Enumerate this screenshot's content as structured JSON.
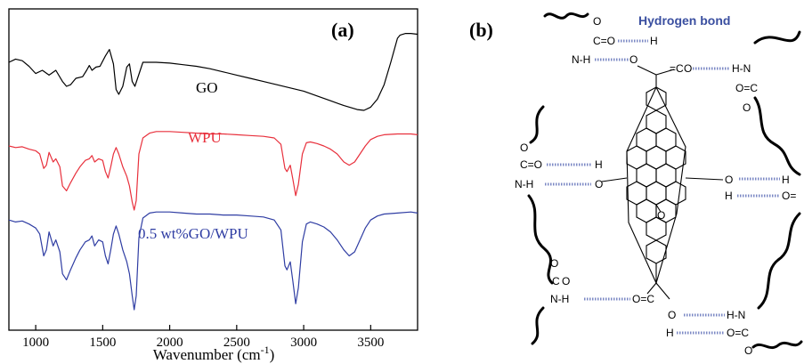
{
  "chart_data": [
    {
      "panel_label": "(a)",
      "type": "line",
      "xlabel": "Wavenumber (cm",
      "xlabel_sup": "-1",
      "xlabel_close": ")",
      "xlim": [
        800,
        3850
      ],
      "xticks": [
        1000,
        1500,
        2000,
        2500,
        3000,
        3500
      ],
      "grid": false,
      "yticks": "none",
      "series": [
        {
          "name": "GO",
          "color": "#000000",
          "points": [
            [
              800,
              0.4
            ],
            [
              850,
              0.36
            ],
            [
              900,
              0.38
            ],
            [
              950,
              0.45
            ],
            [
              1000,
              0.54
            ],
            [
              1050,
              0.5
            ],
            [
              1100,
              0.56
            ],
            [
              1150,
              0.5
            ],
            [
              1200,
              0.64
            ],
            [
              1230,
              0.7
            ],
            [
              1260,
              0.68
            ],
            [
              1300,
              0.6
            ],
            [
              1350,
              0.58
            ],
            [
              1380,
              0.5
            ],
            [
              1400,
              0.44
            ],
            [
              1420,
              0.5
            ],
            [
              1450,
              0.46
            ],
            [
              1480,
              0.45
            ],
            [
              1520,
              0.32
            ],
            [
              1550,
              0.24
            ],
            [
              1580,
              0.42
            ],
            [
              1600,
              0.74
            ],
            [
              1620,
              0.8
            ],
            [
              1650,
              0.7
            ],
            [
              1680,
              0.46
            ],
            [
              1700,
              0.42
            ],
            [
              1720,
              0.64
            ],
            [
              1740,
              0.7
            ],
            [
              1760,
              0.6
            ],
            [
              1800,
              0.4
            ],
            [
              1900,
              0.4
            ],
            [
              2000,
              0.41
            ],
            [
              2100,
              0.43
            ],
            [
              2200,
              0.45
            ],
            [
              2300,
              0.48
            ],
            [
              2400,
              0.52
            ],
            [
              2500,
              0.56
            ],
            [
              2600,
              0.6
            ],
            [
              2700,
              0.64
            ],
            [
              2800,
              0.68
            ],
            [
              2900,
              0.72
            ],
            [
              3000,
              0.76
            ],
            [
              3100,
              0.82
            ],
            [
              3200,
              0.88
            ],
            [
              3300,
              0.94
            ],
            [
              3400,
              0.99
            ],
            [
              3450,
              1.0
            ],
            [
              3500,
              0.96
            ],
            [
              3550,
              0.86
            ],
            [
              3600,
              0.68
            ],
            [
              3650,
              0.4
            ],
            [
              3680,
              0.22
            ],
            [
              3700,
              0.1
            ],
            [
              3720,
              0.06
            ],
            [
              3760,
              0.04
            ],
            [
              3800,
              0.04
            ],
            [
              3850,
              0.05
            ]
          ]
        },
        {
          "name": "WPU",
          "color": "#e8303c",
          "points": [
            [
              800,
              0.2
            ],
            [
              850,
              0.22
            ],
            [
              900,
              0.21
            ],
            [
              950,
              0.24
            ],
            [
              1000,
              0.26
            ],
            [
              1030,
              0.3
            ],
            [
              1060,
              0.48
            ],
            [
              1080,
              0.44
            ],
            [
              1100,
              0.28
            ],
            [
              1130,
              0.4
            ],
            [
              1150,
              0.36
            ],
            [
              1180,
              0.46
            ],
            [
              1200,
              0.7
            ],
            [
              1230,
              0.76
            ],
            [
              1260,
              0.66
            ],
            [
              1300,
              0.54
            ],
            [
              1330,
              0.46
            ],
            [
              1370,
              0.38
            ],
            [
              1400,
              0.36
            ],
            [
              1420,
              0.32
            ],
            [
              1440,
              0.4
            ],
            [
              1470,
              0.36
            ],
            [
              1500,
              0.38
            ],
            [
              1520,
              0.52
            ],
            [
              1540,
              0.6
            ],
            [
              1560,
              0.46
            ],
            [
              1580,
              0.3
            ],
            [
              1600,
              0.22
            ],
            [
              1620,
              0.3
            ],
            [
              1650,
              0.46
            ],
            [
              1680,
              0.58
            ],
            [
              1700,
              0.7
            ],
            [
              1720,
              0.9
            ],
            [
              1735,
              1.0
            ],
            [
              1750,
              0.88
            ],
            [
              1770,
              0.3
            ],
            [
              1800,
              0.1
            ],
            [
              1850,
              0.04
            ],
            [
              1900,
              0.02
            ],
            [
              2000,
              0.02
            ],
            [
              2100,
              0.03
            ],
            [
              2200,
              0.04
            ],
            [
              2300,
              0.05
            ],
            [
              2400,
              0.05
            ],
            [
              2500,
              0.06
            ],
            [
              2600,
              0.07
            ],
            [
              2700,
              0.08
            ],
            [
              2780,
              0.1
            ],
            [
              2830,
              0.18
            ],
            [
              2860,
              0.48
            ],
            [
              2875,
              0.52
            ],
            [
              2900,
              0.44
            ],
            [
              2920,
              0.62
            ],
            [
              2940,
              0.82
            ],
            [
              2960,
              0.68
            ],
            [
              2990,
              0.3
            ],
            [
              3020,
              0.16
            ],
            [
              3050,
              0.15
            ],
            [
              3100,
              0.17
            ],
            [
              3150,
              0.2
            ],
            [
              3200,
              0.24
            ],
            [
              3250,
              0.3
            ],
            [
              3300,
              0.4
            ],
            [
              3340,
              0.44
            ],
            [
              3380,
              0.4
            ],
            [
              3420,
              0.3
            ],
            [
              3460,
              0.2
            ],
            [
              3500,
              0.12
            ],
            [
              3550,
              0.08
            ],
            [
              3600,
              0.06
            ],
            [
              3700,
              0.05
            ],
            [
              3800,
              0.05
            ],
            [
              3850,
              0.06
            ]
          ]
        },
        {
          "name": "0.5 wt%GO/WPU",
          "color": "#2f3da3",
          "points": [
            [
              800,
              0.1
            ],
            [
              850,
              0.12
            ],
            [
              900,
              0.11
            ],
            [
              950,
              0.14
            ],
            [
              1000,
              0.18
            ],
            [
              1030,
              0.24
            ],
            [
              1060,
              0.46
            ],
            [
              1080,
              0.4
            ],
            [
              1100,
              0.22
            ],
            [
              1130,
              0.36
            ],
            [
              1150,
              0.3
            ],
            [
              1180,
              0.42
            ],
            [
              1200,
              0.64
            ],
            [
              1230,
              0.7
            ],
            [
              1260,
              0.6
            ],
            [
              1300,
              0.48
            ],
            [
              1330,
              0.4
            ],
            [
              1370,
              0.32
            ],
            [
              1400,
              0.3
            ],
            [
              1420,
              0.26
            ],
            [
              1440,
              0.36
            ],
            [
              1470,
              0.3
            ],
            [
              1500,
              0.32
            ],
            [
              1520,
              0.46
            ],
            [
              1540,
              0.54
            ],
            [
              1560,
              0.4
            ],
            [
              1580,
              0.24
            ],
            [
              1600,
              0.16
            ],
            [
              1620,
              0.24
            ],
            [
              1650,
              0.4
            ],
            [
              1680,
              0.52
            ],
            [
              1700,
              0.64
            ],
            [
              1720,
              0.86
            ],
            [
              1735,
              1.0
            ],
            [
              1750,
              0.86
            ],
            [
              1770,
              0.28
            ],
            [
              1800,
              0.08
            ],
            [
              1850,
              0.03
            ],
            [
              1900,
              0.02
            ],
            [
              2000,
              0.02
            ],
            [
              2100,
              0.03
            ],
            [
              2200,
              0.04
            ],
            [
              2300,
              0.04
            ],
            [
              2400,
              0.05
            ],
            [
              2500,
              0.05
            ],
            [
              2600,
              0.06
            ],
            [
              2700,
              0.07
            ],
            [
              2780,
              0.1
            ],
            [
              2830,
              0.2
            ],
            [
              2860,
              0.56
            ],
            [
              2875,
              0.6
            ],
            [
              2900,
              0.52
            ],
            [
              2920,
              0.72
            ],
            [
              2940,
              0.94
            ],
            [
              2960,
              0.78
            ],
            [
              2990,
              0.32
            ],
            [
              3020,
              0.14
            ],
            [
              3050,
              0.12
            ],
            [
              3100,
              0.14
            ],
            [
              3150,
              0.17
            ],
            [
              3200,
              0.22
            ],
            [
              3250,
              0.3
            ],
            [
              3300,
              0.4
            ],
            [
              3340,
              0.46
            ],
            [
              3380,
              0.42
            ],
            [
              3420,
              0.3
            ],
            [
              3460,
              0.18
            ],
            [
              3500,
              0.1
            ],
            [
              3550,
              0.06
            ],
            [
              3600,
              0.04
            ],
            [
              3700,
              0.03
            ],
            [
              3800,
              0.02
            ],
            [
              3850,
              0.03
            ]
          ]
        }
      ]
    }
  ],
  "diagram": {
    "panel_label": "(b)",
    "title": "Hydrogen bond",
    "atoms": {
      "O": "O",
      "C": "C",
      "N": "N",
      "H": "H",
      "CO": "C=O",
      "NH": "N-H",
      "HN": "H-N",
      "OC": "O=C",
      "Oeq": "O=",
      "Ceq": "=C"
    },
    "colors": {
      "title": "#3a4fa0",
      "hbond": "#7b88c4",
      "ink": "#000000"
    }
  }
}
